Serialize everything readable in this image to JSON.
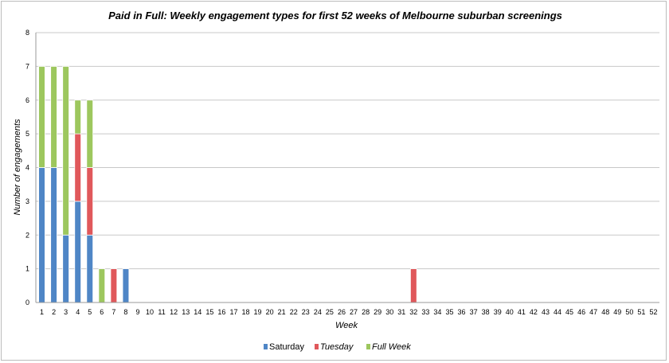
{
  "chart_data": {
    "type": "bar",
    "stacked": true,
    "title": "Paid in Full: Weekly engagement types for first 52 weeks of Melbourne suburban screenings",
    "xlabel": "Week",
    "ylabel": "Number of engagements",
    "ylim": [
      0,
      8
    ],
    "yticks": [
      0,
      1,
      2,
      3,
      4,
      5,
      6,
      7,
      8
    ],
    "grid": true,
    "legend_position": "bottom",
    "categories": [
      "1",
      "2",
      "3",
      "4",
      "5",
      "6",
      "7",
      "8",
      "9",
      "10",
      "11",
      "12",
      "13",
      "14",
      "15",
      "16",
      "17",
      "18",
      "19",
      "20",
      "21",
      "22",
      "23",
      "24",
      "25",
      "26",
      "27",
      "28",
      "29",
      "30",
      "31",
      "32",
      "33",
      "34",
      "35",
      "36",
      "37",
      "38",
      "39",
      "40",
      "41",
      "42",
      "43",
      "44",
      "45",
      "46",
      "47",
      "48",
      "49",
      "50",
      "51",
      "52"
    ],
    "series": [
      {
        "name": "Saturday",
        "color": "#4f86c6",
        "values": [
          4,
          4,
          2,
          3,
          2,
          0,
          0,
          1,
          0,
          0,
          0,
          0,
          0,
          0,
          0,
          0,
          0,
          0,
          0,
          0,
          0,
          0,
          0,
          0,
          0,
          0,
          0,
          0,
          0,
          0,
          0,
          0,
          0,
          0,
          0,
          0,
          0,
          0,
          0,
          0,
          0,
          0,
          0,
          0,
          0,
          0,
          0,
          0,
          0,
          0,
          0,
          0
        ]
      },
      {
        "name": "Tuesday",
        "color": "#e0585b",
        "values": [
          0,
          0,
          0,
          2,
          2,
          0,
          1,
          0,
          0,
          0,
          0,
          0,
          0,
          0,
          0,
          0,
          0,
          0,
          0,
          0,
          0,
          0,
          0,
          0,
          0,
          0,
          0,
          0,
          0,
          0,
          0,
          1,
          0,
          0,
          0,
          0,
          0,
          0,
          0,
          0,
          0,
          0,
          0,
          0,
          0,
          0,
          0,
          0,
          0,
          0,
          0,
          0
        ]
      },
      {
        "name": "Full Week",
        "color": "#9dc75e",
        "values": [
          3,
          3,
          5,
          1,
          2,
          1,
          0,
          0,
          0,
          0,
          0,
          0,
          0,
          0,
          0,
          0,
          0,
          0,
          0,
          0,
          0,
          0,
          0,
          0,
          0,
          0,
          0,
          0,
          0,
          0,
          0,
          0,
          0,
          0,
          0,
          0,
          0,
          0,
          0,
          0,
          0,
          0,
          0,
          0,
          0,
          0,
          0,
          0,
          0,
          0,
          0,
          0
        ]
      }
    ]
  }
}
